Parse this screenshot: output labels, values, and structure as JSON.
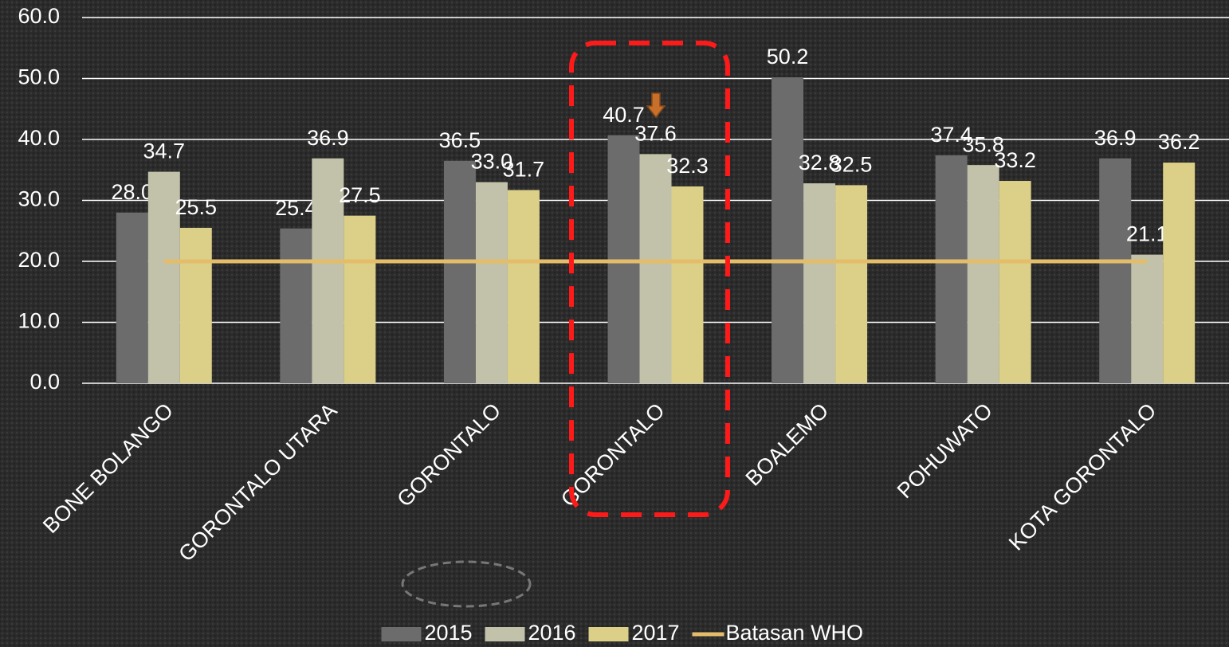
{
  "chart_data": {
    "type": "bar",
    "categories": [
      "BONE BOLANGO",
      "GORONTALO UTARA",
      "GORONTALO",
      "GORONTALO",
      "BOALEMO",
      "POHUWATO",
      "KOTA GORONTALO"
    ],
    "series": [
      {
        "name": "2015",
        "type": "bar",
        "color": "#6c6c6c",
        "values": [
          28.0,
          25.4,
          36.5,
          40.7,
          50.2,
          37.4,
          36.9
        ],
        "value_labels": [
          "28.0",
          "25.4",
          "36.5",
          "40.7",
          "50.2",
          "37.4",
          "36.9"
        ]
      },
      {
        "name": "2016",
        "type": "bar",
        "color": "#c2c2aa",
        "values": [
          34.7,
          36.9,
          33.0,
          37.6,
          32.8,
          35.8,
          21.1
        ],
        "value_labels": [
          "34.7",
          "36.9",
          "33.0",
          "37.6",
          "32.8",
          "35.8",
          "21.1"
        ]
      },
      {
        "name": "2017",
        "type": "bar",
        "color": "#dccf88",
        "values": [
          25.5,
          27.5,
          31.7,
          32.3,
          32.5,
          33.2,
          36.2
        ],
        "value_labels": [
          "25.5",
          "27.5",
          "31.7",
          "32.3",
          "32.5",
          "33.2",
          "36.2"
        ]
      },
      {
        "name": "Batasan WHO",
        "type": "line",
        "color": "#e3bd6a",
        "values": [
          20,
          20,
          20,
          20,
          20,
          20,
          20
        ]
      }
    ],
    "ylim": [
      0,
      60
    ],
    "yticks": [
      {
        "value": 0,
        "label": "0.0"
      },
      {
        "value": 10,
        "label": "10.0"
      },
      {
        "value": 20,
        "label": "20.0"
      },
      {
        "value": 30,
        "label": "30.0"
      },
      {
        "value": 40,
        "label": "40.0"
      },
      {
        "value": 50,
        "label": "50.0"
      },
      {
        "value": 60,
        "label": "60.0"
      }
    ],
    "grid": true,
    "legend": "bottom"
  }
}
